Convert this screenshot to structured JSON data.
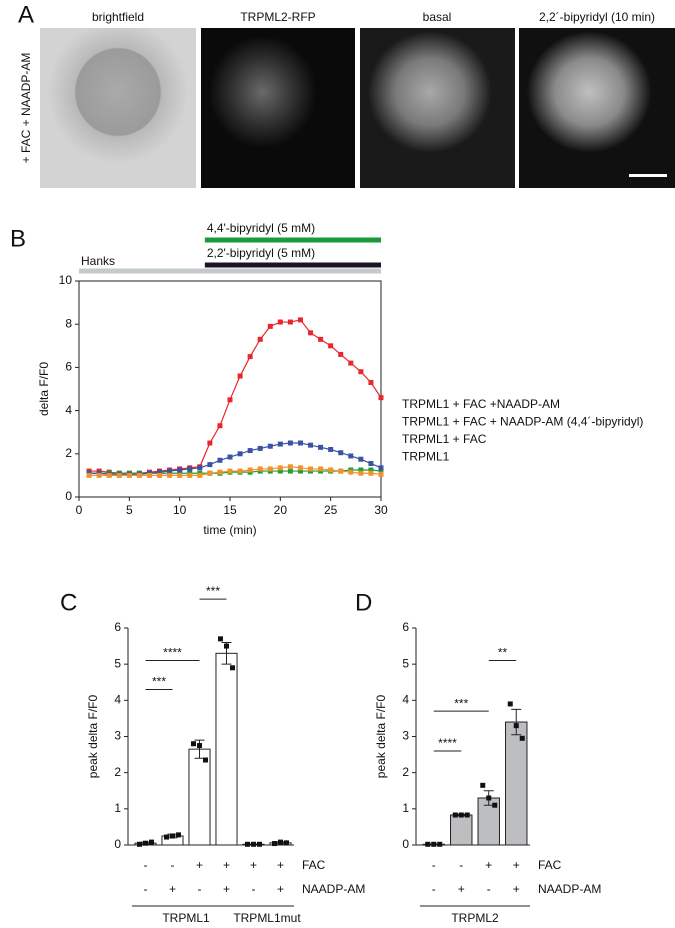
{
  "panel_labels": [
    "A",
    "B",
    "C",
    "D"
  ],
  "images": {
    "side_label": "+ FAC + NAADP-AM",
    "titles": [
      "brightfield",
      "TRPML2-RFP",
      "basal",
      "2,2´-bipyridyl (10 min)"
    ]
  },
  "chart_data": [
    {
      "type": "line",
      "xlabel": "time (min)",
      "ylabel": "delta F/F0",
      "x": [
        1,
        2,
        3,
        4,
        5,
        6,
        7,
        8,
        9,
        10,
        11,
        12,
        13,
        14,
        15,
        16,
        17,
        18,
        19,
        20,
        21,
        22,
        23,
        24,
        25,
        26,
        27,
        28,
        29,
        30
      ],
      "xlim": [
        0,
        30
      ],
      "xticks": [
        0,
        5,
        10,
        15,
        20,
        25,
        30
      ],
      "ylim": [
        0,
        10
      ],
      "yticks": [
        0,
        2,
        4,
        6,
        8,
        10
      ],
      "periods": [
        {
          "label": "4,4'-bipyridyl (5 mM)",
          "color": "#1a9a3c",
          "start": 12.5,
          "end": 30
        },
        {
          "label": "2,2'-bipyridyl (5 mM)",
          "color": "#1a1424",
          "start": 12.5,
          "end": 30
        },
        {
          "label": "Hanks",
          "color": "#c4c9cc",
          "start": 0,
          "end": 30
        }
      ],
      "series": [
        {
          "name": "TRPML1 + FAC +NAADP-AM",
          "color": "#e8262b",
          "values": [
            1.2,
            1.2,
            1.15,
            1.1,
            1.1,
            1.1,
            1.15,
            1.2,
            1.25,
            1.3,
            1.35,
            1.4,
            2.5,
            3.3,
            4.5,
            5.6,
            6.5,
            7.3,
            7.9,
            8.1,
            8.1,
            8.2,
            7.6,
            7.3,
            7.0,
            6.6,
            6.2,
            5.8,
            5.3,
            4.6
          ]
        },
        {
          "name": "TRPML1 + FAC + NAADP-AM (4,4´-bipyridyl)",
          "color": "#1f9e3a",
          "values": [
            1.1,
            1.1,
            1.1,
            1.1,
            1.1,
            1.1,
            1.1,
            1.1,
            1.1,
            1.1,
            1.1,
            1.1,
            1.1,
            1.1,
            1.15,
            1.15,
            1.15,
            1.2,
            1.2,
            1.2,
            1.2,
            1.2,
            1.2,
            1.2,
            1.2,
            1.2,
            1.25,
            1.25,
            1.25,
            1.2
          ]
        },
        {
          "name": "TRPML1 + FAC",
          "color": "#3a54a4",
          "values": [
            1.1,
            1.1,
            1.05,
            1.05,
            1.05,
            1.05,
            1.1,
            1.15,
            1.2,
            1.25,
            1.3,
            1.35,
            1.5,
            1.7,
            1.85,
            2.0,
            2.15,
            2.25,
            2.35,
            2.45,
            2.5,
            2.5,
            2.4,
            2.3,
            2.2,
            2.05,
            1.9,
            1.75,
            1.55,
            1.35
          ]
        },
        {
          "name": "TRPML1",
          "color": "#f0932b",
          "values": [
            1.0,
            1.0,
            1.0,
            1.0,
            1.0,
            1.0,
            1.0,
            1.0,
            1.0,
            1.0,
            1.0,
            1.0,
            1.1,
            1.15,
            1.2,
            1.2,
            1.25,
            1.3,
            1.3,
            1.35,
            1.4,
            1.35,
            1.3,
            1.3,
            1.25,
            1.2,
            1.15,
            1.1,
            1.1,
            1.05
          ]
        }
      ]
    },
    {
      "type": "bar",
      "ylabel": "peak delta F/F0",
      "ylim": [
        0,
        6
      ],
      "yticks": [
        0,
        1,
        2,
        3,
        4,
        5,
        6
      ],
      "color": "#ffffff",
      "values": [
        0.05,
        0.25,
        2.65,
        5.3,
        0.02,
        0.06
      ],
      "errors": [
        0.03,
        0.05,
        0.25,
        0.3,
        0.01,
        0.03
      ],
      "points": [
        [
          0.02,
          0.05,
          0.08
        ],
        [
          0.22,
          0.25,
          0.28
        ],
        [
          2.8,
          2.75,
          2.35
        ],
        [
          5.7,
          5.5,
          4.9
        ],
        [
          0.02,
          0.02,
          0.02
        ],
        [
          0.04,
          0.08,
          0.06
        ]
      ],
      "rows": [
        {
          "label": "FAC",
          "marks": [
            "-",
            "-",
            "+",
            "+",
            "+",
            "+"
          ]
        },
        {
          "label": "NAADP-AM",
          "marks": [
            "-",
            "+",
            "-",
            "+",
            "-",
            "+"
          ]
        }
      ],
      "groups": [
        {
          "label": "TRPML1",
          "from": 0,
          "to": 3
        },
        {
          "label": "TRPML1mut",
          "from": 4,
          "to": 5
        }
      ],
      "significance": [
        {
          "label": "***",
          "from": 0,
          "to": 1,
          "y": 4.3
        },
        {
          "label": "****",
          "from": 0,
          "to": 2,
          "y": 5.1
        },
        {
          "label": "***",
          "from": 2,
          "to": 3,
          "y": 6.8
        }
      ]
    },
    {
      "type": "bar",
      "ylabel": "peak delta F/F0",
      "ylim": [
        0,
        6
      ],
      "yticks": [
        0,
        1,
        2,
        3,
        4,
        5,
        6
      ],
      "color": "#bcbec0",
      "values": [
        0.02,
        0.83,
        1.3,
        3.4
      ],
      "errors": [
        0.01,
        0.02,
        0.2,
        0.35
      ],
      "points": [
        [
          0.02,
          0.02,
          0.02
        ],
        [
          0.83,
          0.83,
          0.83
        ],
        [
          1.65,
          1.3,
          1.1
        ],
        [
          3.9,
          3.3,
          2.95
        ]
      ],
      "rows": [
        {
          "label": "FAC",
          "marks": [
            "-",
            "-",
            "+",
            "+"
          ]
        },
        {
          "label": "NAADP-AM",
          "marks": [
            "-",
            "+",
            "-",
            "+"
          ]
        }
      ],
      "groups": [
        {
          "label": "TRPML2",
          "from": 0,
          "to": 3
        }
      ],
      "significance": [
        {
          "label": "****",
          "from": 0,
          "to": 1,
          "y": 2.6
        },
        {
          "label": "***",
          "from": 0,
          "to": 2,
          "y": 3.7
        },
        {
          "label": "**",
          "from": 2,
          "to": 3,
          "y": 5.1
        }
      ]
    }
  ]
}
